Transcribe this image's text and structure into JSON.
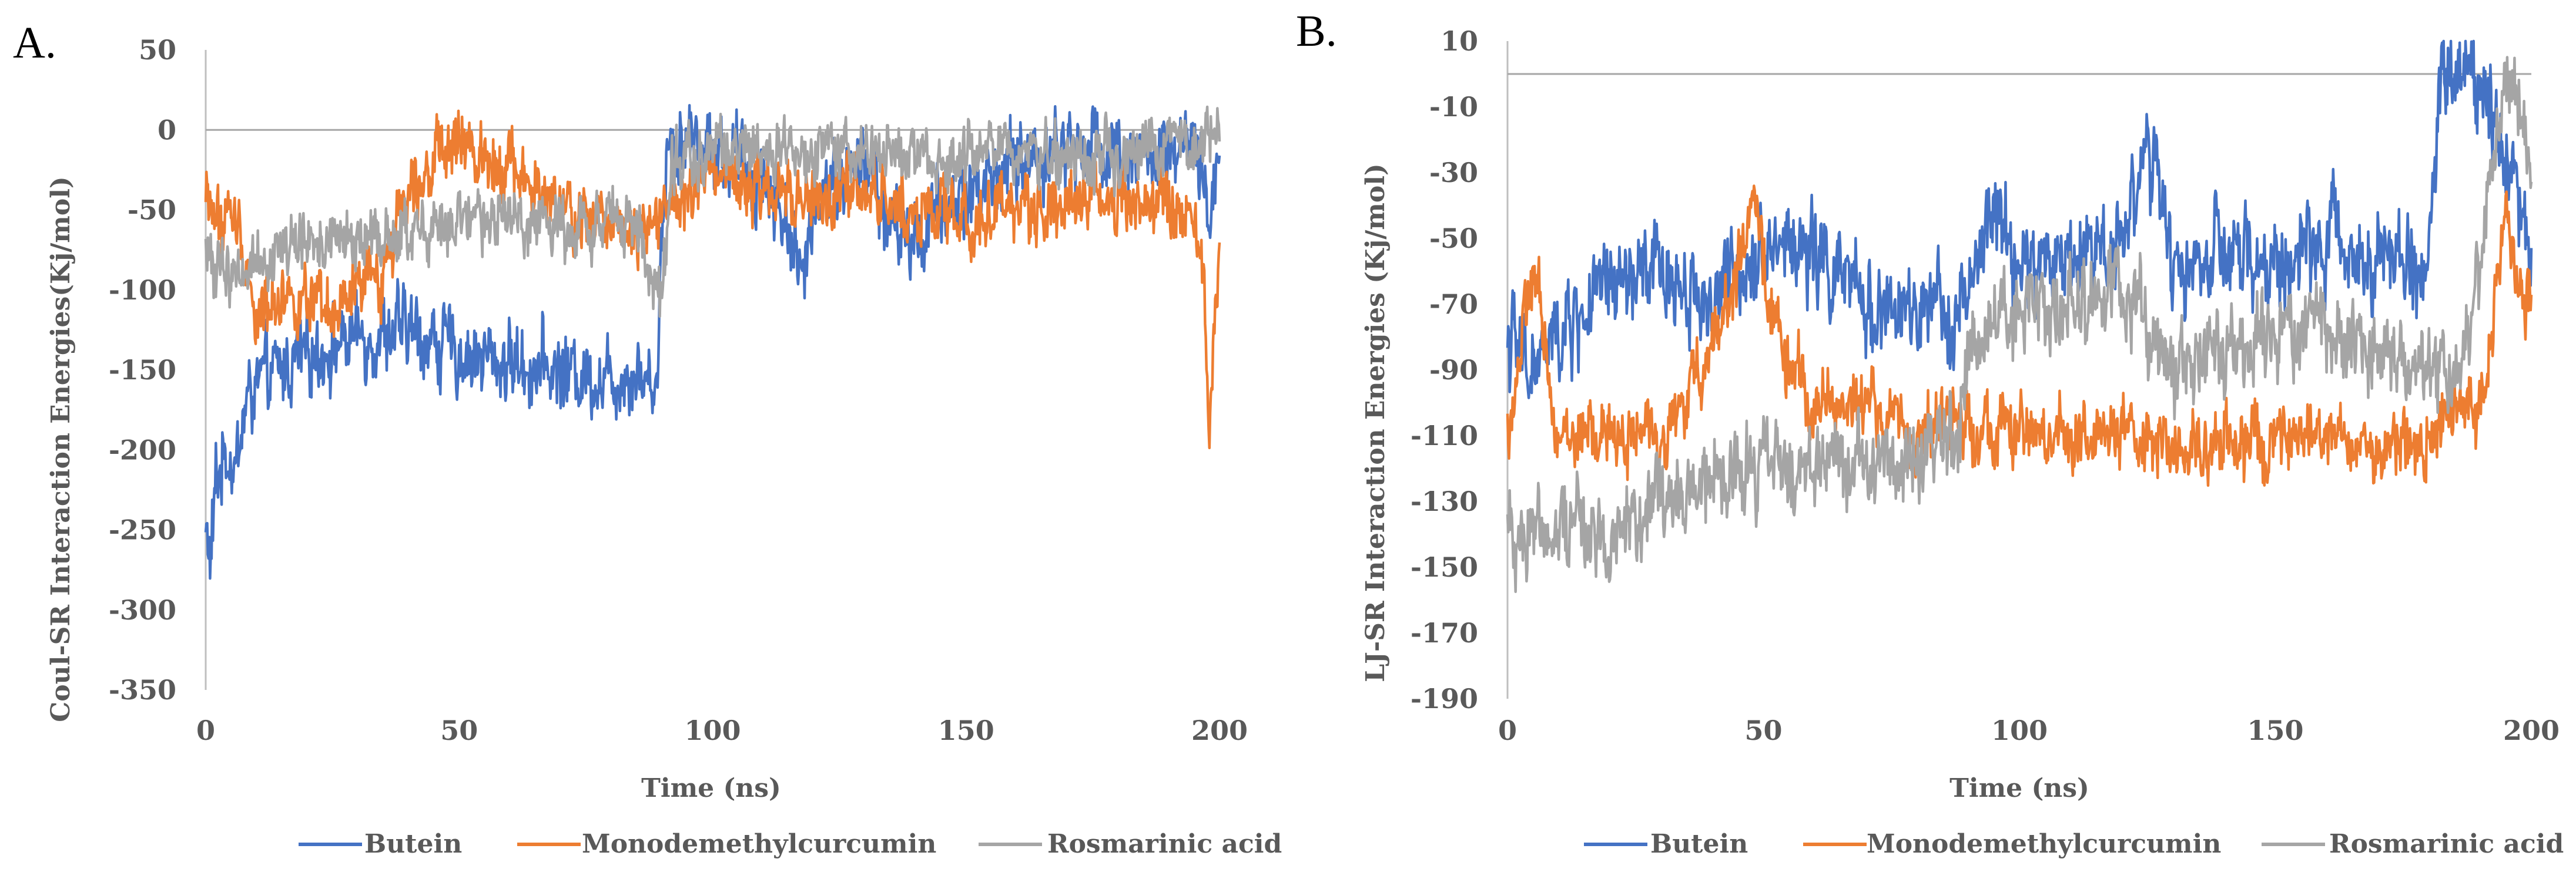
{
  "chart_data": [
    {
      "panel": "A.",
      "type": "line",
      "title": "",
      "xlabel": "Time (ns)",
      "ylabel": "Coul-SR  Interaction  Energies(Kj/mol)",
      "xlim": [
        0,
        200
      ],
      "ylim": [
        -350,
        50
      ],
      "xticks": [
        0,
        50,
        100,
        150,
        200
      ],
      "yticks": [
        50,
        0,
        -50,
        -100,
        -150,
        -200,
        -250,
        -300,
        -350
      ],
      "grid": false,
      "legend": "bottom",
      "series": [
        {
          "name": "Butein",
          "color": "#4472c4",
          "noise": 26,
          "x": [
            0,
            1,
            2,
            4,
            6,
            8,
            10,
            15,
            20,
            25,
            30,
            40,
            50,
            60,
            70,
            80,
            85,
            89,
            90,
            91,
            92,
            95,
            100,
            105,
            110,
            115,
            118,
            120,
            125,
            130,
            135,
            140,
            145,
            150,
            160,
            170,
            180,
            190,
            195,
            198,
            200
          ],
          "y": [
            -250,
            -270,
            -220,
            -200,
            -210,
            -170,
            -160,
            -150,
            -140,
            -135,
            -130,
            -125,
            -140,
            -145,
            -150,
            -155,
            -150,
            -160,
            -60,
            -10,
            -5,
            -5,
            -10,
            -20,
            -30,
            -60,
            -100,
            -40,
            -30,
            -20,
            -60,
            -70,
            -50,
            -40,
            -20,
            -10,
            -10,
            -20,
            -10,
            -60,
            0
          ]
        },
        {
          "name": "Monodemethylcurcumin",
          "color": "#ed7d31",
          "noise": 22,
          "x": [
            0,
            3,
            5,
            8,
            10,
            15,
            20,
            25,
            30,
            35,
            40,
            45,
            50,
            55,
            60,
            65,
            70,
            75,
            80,
            85,
            90,
            95,
            100,
            110,
            120,
            130,
            140,
            150,
            160,
            170,
            180,
            190,
            195,
            197,
            198,
            199,
            200
          ],
          "y": [
            -40,
            -60,
            -50,
            -80,
            -120,
            -100,
            -110,
            -120,
            -100,
            -90,
            -30,
            -20,
            -10,
            -15,
            -20,
            -40,
            -50,
            -60,
            -55,
            -60,
            -50,
            -45,
            -30,
            -40,
            -45,
            -40,
            -50,
            -55,
            -50,
            -45,
            -40,
            -50,
            -60,
            -100,
            -200,
            -120,
            -60
          ]
        },
        {
          "name": "Rosmarinic acid",
          "color": "#a5a5a5",
          "noise": 20,
          "x": [
            0,
            5,
            10,
            15,
            20,
            30,
            40,
            50,
            60,
            70,
            80,
            85,
            88,
            90,
            92,
            95,
            100,
            110,
            120,
            130,
            140,
            150,
            160,
            170,
            180,
            190,
            200
          ],
          "y": [
            -80,
            -90,
            -80,
            -75,
            -70,
            -70,
            -65,
            -60,
            -55,
            -60,
            -55,
            -60,
            -90,
            -110,
            -20,
            -20,
            -10,
            -15,
            -20,
            -10,
            -20,
            -15,
            -10,
            -20,
            -15,
            -5,
            -10
          ]
        }
      ]
    },
    {
      "panel": "B.",
      "type": "line",
      "title": "",
      "xlabel": "Time (ns)",
      "ylabel": "LJ-SR Interaction  Energies (Kj/mol)",
      "xlim": [
        0,
        200
      ],
      "ylim": [
        -190,
        10
      ],
      "xticks": [
        0,
        50,
        100,
        150,
        200
      ],
      "yticks": [
        10,
        -10,
        -30,
        -50,
        -70,
        -90,
        -110,
        -130,
        -150,
        -170,
        -190
      ],
      "grid": false,
      "legend": "bottom",
      "series": [
        {
          "name": "Butein",
          "color": "#4472c4",
          "noise": 15,
          "x": [
            0,
            5,
            10,
            20,
            30,
            40,
            45,
            50,
            60,
            70,
            80,
            90,
            95,
            100,
            110,
            120,
            125,
            130,
            140,
            150,
            160,
            170,
            180,
            182,
            185,
            190,
            195,
            198,
            200
          ],
          "y": [
            -80,
            -90,
            -80,
            -65,
            -60,
            -70,
            -60,
            -50,
            -55,
            -70,
            -75,
            -70,
            -40,
            -60,
            -55,
            -50,
            -20,
            -60,
            -55,
            -60,
            -50,
            -55,
            -60,
            0,
            0,
            0,
            -20,
            -45,
            -50
          ]
        },
        {
          "name": "Monodemethylcurcumin",
          "color": "#ed7d31",
          "noise": 11,
          "x": [
            0,
            3,
            5,
            8,
            10,
            20,
            30,
            35,
            40,
            45,
            48,
            50,
            55,
            60,
            70,
            80,
            90,
            100,
            110,
            120,
            130,
            140,
            150,
            160,
            170,
            180,
            190,
            193,
            195,
            197,
            200
          ],
          "y": [
            -110,
            -80,
            -60,
            -90,
            -110,
            -110,
            -110,
            -100,
            -80,
            -60,
            -40,
            -60,
            -90,
            -100,
            -100,
            -110,
            -105,
            -110,
            -110,
            -110,
            -115,
            -110,
            -115,
            -110,
            -115,
            -110,
            -100,
            -70,
            -40,
            -60,
            -70
          ]
        },
        {
          "name": "Rosmarinic acid",
          "color": "#a5a5a5",
          "noise": 14,
          "x": [
            0,
            10,
            20,
            30,
            40,
            50,
            60,
            70,
            80,
            88,
            90,
            95,
            100,
            110,
            120,
            130,
            140,
            150,
            160,
            170,
            180,
            185,
            190,
            193,
            195,
            198,
            200
          ],
          "y": [
            -140,
            -135,
            -140,
            -130,
            -125,
            -120,
            -120,
            -115,
            -120,
            -110,
            -80,
            -70,
            -75,
            -70,
            -65,
            -90,
            -85,
            -80,
            -75,
            -85,
            -90,
            -90,
            -60,
            -20,
            0,
            -10,
            -40
          ]
        }
      ]
    }
  ]
}
